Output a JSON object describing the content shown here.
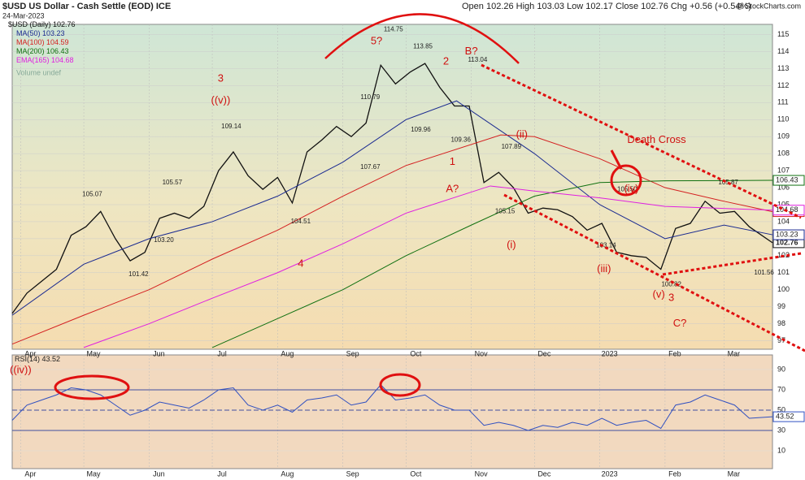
{
  "chart_data": [
    {
      "type": "line",
      "title": "$USD US Dollar - Cash Settle (EOD) ICE",
      "subtitle": "24-Mar-2023",
      "quote": "Open 102.26 High 103.03 Low 102.17 Close 102.76 Chg +0.56 (+0.54%)",
      "credit": "@ StockCharts.com",
      "volume_note": "Volume undef",
      "xlim": [
        "2022-03-28",
        "2023-03-24"
      ],
      "xticks": [
        {
          "value": "2022-04-01",
          "label": "Apr"
        },
        {
          "value": "2022-05-01",
          "label": "May"
        },
        {
          "value": "2022-06-01",
          "label": "Jun"
        },
        {
          "value": "2022-07-01",
          "label": "Jul"
        },
        {
          "value": "2022-08-01",
          "label": "Aug"
        },
        {
          "value": "2022-09-01",
          "label": "Sep"
        },
        {
          "value": "2022-10-01",
          "label": "Oct"
        },
        {
          "value": "2022-11-01",
          "label": "Nov"
        },
        {
          "value": "2022-12-01",
          "label": "Dec"
        },
        {
          "value": "2023-01-01",
          "label": "2023"
        },
        {
          "value": "2023-02-01",
          "label": "Feb"
        },
        {
          "value": "2023-03-01",
          "label": "Mar"
        }
      ],
      "ylim": [
        96.5,
        115.6
      ],
      "yticks": [
        97,
        98,
        99,
        100,
        101,
        102,
        103,
        104,
        105,
        106,
        107,
        108,
        109,
        110,
        111,
        112,
        113,
        114,
        115
      ],
      "grid": true,
      "series": [
        {
          "name": "$USD (Daily)",
          "last": 102.76,
          "color": "#111111",
          "x": [
            "2022-03-28",
            "2022-04-04",
            "2022-04-11",
            "2022-04-18",
            "2022-04-25",
            "2022-05-02",
            "2022-05-09",
            "2022-05-16",
            "2022-05-23",
            "2022-05-30",
            "2022-06-06",
            "2022-06-13",
            "2022-06-20",
            "2022-06-27",
            "2022-07-04",
            "2022-07-11",
            "2022-07-18",
            "2022-07-25",
            "2022-08-01",
            "2022-08-08",
            "2022-08-15",
            "2022-08-22",
            "2022-08-29",
            "2022-09-05",
            "2022-09-12",
            "2022-09-19",
            "2022-09-26",
            "2022-10-03",
            "2022-10-10",
            "2022-10-17",
            "2022-10-24",
            "2022-10-31",
            "2022-11-07",
            "2022-11-14",
            "2022-11-21",
            "2022-11-28",
            "2022-12-05",
            "2022-12-12",
            "2022-12-19",
            "2022-12-26",
            "2023-01-02",
            "2023-01-09",
            "2023-01-16",
            "2023-01-23",
            "2023-01-30",
            "2023-02-06",
            "2023-02-13",
            "2023-02-20",
            "2023-02-27",
            "2023-03-06",
            "2023-03-13",
            "2023-03-24"
          ],
          "values": [
            98.6,
            99.8,
            100.5,
            101.2,
            103.2,
            103.7,
            104.6,
            103.0,
            101.7,
            102.2,
            104.2,
            104.5,
            104.2,
            104.9,
            107.0,
            108.1,
            106.7,
            105.9,
            106.6,
            105.1,
            108.1,
            108.8,
            109.6,
            109.0,
            109.8,
            113.2,
            112.1,
            112.8,
            113.3,
            111.9,
            110.8,
            110.8,
            106.3,
            106.9,
            106.0,
            104.5,
            104.8,
            104.7,
            104.3,
            103.5,
            103.9,
            102.2,
            102.0,
            101.9,
            101.2,
            103.6,
            103.9,
            105.2,
            104.5,
            104.6,
            103.7,
            102.76
          ]
        },
        {
          "name": "MA(50)",
          "last": 103.23,
          "color": "#1a2a90",
          "x": [
            "2022-03-28",
            "2022-05-01",
            "2022-06-01",
            "2022-07-01",
            "2022-08-01",
            "2022-09-01",
            "2022-10-01",
            "2022-10-25",
            "2022-12-01",
            "2023-01-01",
            "2023-02-01",
            "2023-03-01",
            "2023-03-24"
          ],
          "values": [
            98.5,
            101.5,
            103.0,
            104.0,
            105.5,
            107.5,
            110.0,
            111.1,
            108.0,
            105.0,
            103.0,
            103.8,
            103.23
          ]
        },
        {
          "name": "MA(100)",
          "last": 104.59,
          "color": "#d42020",
          "x": [
            "2022-03-28",
            "2022-05-01",
            "2022-06-01",
            "2022-07-01",
            "2022-08-01",
            "2022-09-01",
            "2022-10-01",
            "2022-11-15",
            "2022-12-01",
            "2023-01-01",
            "2023-02-01",
            "2023-03-01",
            "2023-03-24"
          ],
          "values": [
            96.8,
            98.5,
            100.0,
            101.8,
            103.5,
            105.5,
            107.3,
            109.1,
            109.0,
            107.7,
            106.0,
            105.2,
            104.59
          ]
        },
        {
          "name": "MA(200)",
          "last": 106.43,
          "color": "#107010",
          "x": [
            "2022-07-01",
            "2022-08-01",
            "2022-09-01",
            "2022-10-01",
            "2022-11-01",
            "2022-12-01",
            "2023-01-01",
            "2023-02-01",
            "2023-03-24"
          ],
          "values": [
            96.6,
            98.3,
            100.0,
            102.0,
            103.8,
            105.5,
            106.3,
            106.4,
            106.43
          ]
        },
        {
          "name": "EMA(165)",
          "last": 104.68,
          "color": "#e020e0",
          "x": [
            "2022-05-01",
            "2022-06-01",
            "2022-07-01",
            "2022-08-01",
            "2022-09-01",
            "2022-10-01",
            "2022-11-10",
            "2022-12-01",
            "2023-01-01",
            "2023-02-01",
            "2023-03-24"
          ],
          "values": [
            96.6,
            98.0,
            99.5,
            101.0,
            102.7,
            104.5,
            106.1,
            105.8,
            105.4,
            104.9,
            104.68
          ]
        }
      ],
      "price_labels": [
        {
          "text": "105.07",
          "x": "2022-05-05",
          "y": 105.6
        },
        {
          "text": "101.42",
          "x": "2022-05-27",
          "y": 100.9
        },
        {
          "text": "105.57",
          "x": "2022-06-12",
          "y": 106.3
        },
        {
          "text": "103.20",
          "x": "2022-06-08",
          "y": 102.9
        },
        {
          "text": "109.14",
          "x": "2022-07-10",
          "y": 109.6
        },
        {
          "text": "104.51",
          "x": "2022-08-12",
          "y": 104.0
        },
        {
          "text": "110.79",
          "x": "2022-09-14",
          "y": 111.3
        },
        {
          "text": "107.67",
          "x": "2022-09-14",
          "y": 107.2
        },
        {
          "text": "114.75",
          "x": "2022-09-25",
          "y": 115.3
        },
        {
          "text": "113.85",
          "x": "2022-10-09",
          "y": 114.3
        },
        {
          "text": "109.96",
          "x": "2022-10-08",
          "y": 109.4
        },
        {
          "text": "109.36",
          "x": "2022-10-27",
          "y": 108.8
        },
        {
          "text": "113.04",
          "x": "2022-11-04",
          "y": 113.5
        },
        {
          "text": "107.89",
          "x": "2022-11-20",
          "y": 108.4
        },
        {
          "text": "105.15",
          "x": "2022-11-17",
          "y": 104.6
        },
        {
          "text": "105.50",
          "x": "2023-01-14",
          "y": 105.9
        },
        {
          "text": "103.14",
          "x": "2023-01-04",
          "y": 102.6
        },
        {
          "text": "100.82",
          "x": "2023-02-04",
          "y": 100.3
        },
        {
          "text": "105.87",
          "x": "2023-03-03",
          "y": 106.3
        },
        {
          "text": "101.56",
          "x": "2023-03-20",
          "y": 101.0
        }
      ],
      "wave_labels": [
        {
          "text": "5?",
          "x": "2022-09-17",
          "y": 114.6
        },
        {
          "text": "2",
          "x": "2022-10-20",
          "y": 113.4
        },
        {
          "text": "B?",
          "x": "2022-11-01",
          "y": 114.0
        },
        {
          "text": "3",
          "x": "2022-07-05",
          "y": 112.4
        },
        {
          "text": "((v))",
          "x": "2022-07-05",
          "y": 111.1
        },
        {
          "text": "1",
          "x": "2022-10-23",
          "y": 107.5
        },
        {
          "text": "A?",
          "x": "2022-10-23",
          "y": 105.9
        },
        {
          "text": "4",
          "x": "2022-08-12",
          "y": 101.5
        },
        {
          "text": "(i)",
          "x": "2022-11-20",
          "y": 102.6
        },
        {
          "text": "(ii)",
          "x": "2022-11-25",
          "y": 109.1
        },
        {
          "text": "(iii)",
          "x": "2023-01-03",
          "y": 101.2
        },
        {
          "text": "(iv)",
          "x": "2023-01-16",
          "y": 105.9
        },
        {
          "text": "(v)",
          "x": "2023-01-29",
          "y": 99.7
        },
        {
          "text": "3",
          "x": "2023-02-04",
          "y": 99.5
        },
        {
          "text": "C?",
          "x": "2023-02-08",
          "y": 98.0
        },
        {
          "text": "Death Cross",
          "x": "2023-01-28",
          "y": 108.8
        }
      ]
    },
    {
      "type": "line",
      "title": "RSI(14)",
      "last": 43.52,
      "color": "#3050c0",
      "ylim": [
        -7.6,
        104.4
      ],
      "yticks": [
        10,
        30,
        50,
        70,
        90
      ],
      "levels": [
        70,
        30
      ],
      "midline": 50,
      "note": "((iv))",
      "values": [
        40,
        55,
        60,
        65,
        72,
        70,
        65,
        55,
        45,
        50,
        58,
        55,
        52,
        60,
        70,
        72,
        55,
        50,
        55,
        48,
        60,
        62,
        65,
        55,
        58,
        75,
        60,
        62,
        65,
        55,
        50,
        50,
        35,
        38,
        35,
        30,
        35,
        33,
        38,
        35,
        42,
        35,
        38,
        40,
        32,
        55,
        58,
        65,
        60,
        55,
        42,
        43.52
      ]
    }
  ]
}
